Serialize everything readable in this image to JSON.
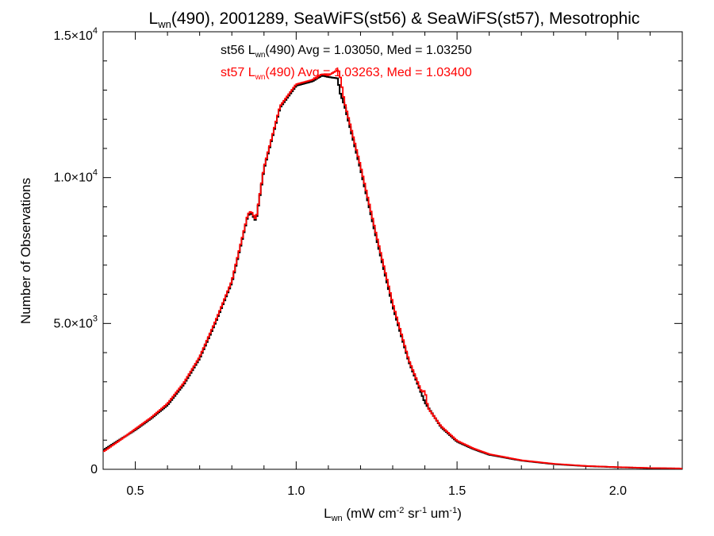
{
  "chart_data": {
    "type": "line",
    "title": {
      "base": "L",
      "sub": "wn",
      "rest": "(490), 2001289, SeaWiFS(st56) & SeaWiFS(st57), Mesotrophic"
    },
    "xlabel": {
      "base": "L",
      "sub": "wn",
      "p1": " (mW cm",
      "sup1": "-2",
      "p2": " sr",
      "sup2": "-1",
      "p3": " um",
      "sup3": "-1",
      "p4": ")"
    },
    "ylabel": "Number of Observations",
    "xlim": [
      0.4,
      2.2
    ],
    "ylim": [
      0,
      15000
    ],
    "x_ticks": [
      {
        "value": 0.5,
        "label": "0.5"
      },
      {
        "value": 1.0,
        "label": "1.0"
      },
      {
        "value": 1.5,
        "label": "1.5"
      },
      {
        "value": 2.0,
        "label": "2.0"
      }
    ],
    "y_ticks": [
      {
        "value": 0,
        "mant": "0",
        "exp": ""
      },
      {
        "value": 5000,
        "mant": "5.0×10",
        "exp": "3"
      },
      {
        "value": 10000,
        "mant": "1.0×10",
        "exp": "4"
      },
      {
        "value": 15000,
        "mant": "1.5×10",
        "exp": "4"
      }
    ],
    "series": [
      {
        "name": "st56",
        "color": "#000000",
        "annotation": {
          "pre": "st56 L",
          "sub": "wn",
          "post": "(490) Avg = 1.03050, Med = 1.03250"
        },
        "x": [
          0.4,
          0.45,
          0.5,
          0.55,
          0.6,
          0.65,
          0.7,
          0.75,
          0.8,
          0.85,
          0.86,
          0.875,
          0.9,
          0.95,
          1.0,
          1.05,
          1.08,
          1.1,
          1.13,
          1.135,
          1.15,
          1.2,
          1.25,
          1.3,
          1.35,
          1.4,
          1.45,
          1.5,
          1.55,
          1.6,
          1.7,
          1.8,
          1.9,
          2.0,
          2.1,
          2.2
        ],
        "y": [
          650,
          1000,
          1350,
          1750,
          2200,
          2900,
          3800,
          5050,
          6400,
          8700,
          8800,
          8500,
          10300,
          12400,
          13150,
          13300,
          13500,
          13450,
          13400,
          12950,
          12500,
          10300,
          7900,
          5600,
          3700,
          2300,
          1450,
          950,
          700,
          500,
          300,
          180,
          110,
          70,
          40,
          25
        ]
      },
      {
        "name": "st57",
        "color": "#ff0000",
        "annotation": {
          "pre": "st57 L",
          "sub": "wn",
          "post": "(490) Avg = 1.03263, Med = 1.03400"
        },
        "x": [
          0.4,
          0.45,
          0.5,
          0.55,
          0.6,
          0.65,
          0.7,
          0.75,
          0.8,
          0.85,
          0.86,
          0.875,
          0.9,
          0.95,
          1.0,
          1.05,
          1.08,
          1.1,
          1.13,
          1.135,
          1.15,
          1.2,
          1.25,
          1.3,
          1.35,
          1.39,
          1.4,
          1.41,
          1.45,
          1.5,
          1.55,
          1.6,
          1.7,
          1.8,
          1.9,
          2.0,
          2.1,
          2.2
        ],
        "y": [
          600,
          980,
          1380,
          1780,
          2250,
          2950,
          3850,
          5100,
          6450,
          8750,
          8850,
          8550,
          10350,
          12450,
          13200,
          13350,
          13550,
          13500,
          13700,
          13600,
          12600,
          10400,
          8000,
          5700,
          3750,
          2650,
          2700,
          2100,
          1480,
          980,
          720,
          520,
          310,
          190,
          115,
          75,
          45,
          30
        ]
      }
    ]
  }
}
